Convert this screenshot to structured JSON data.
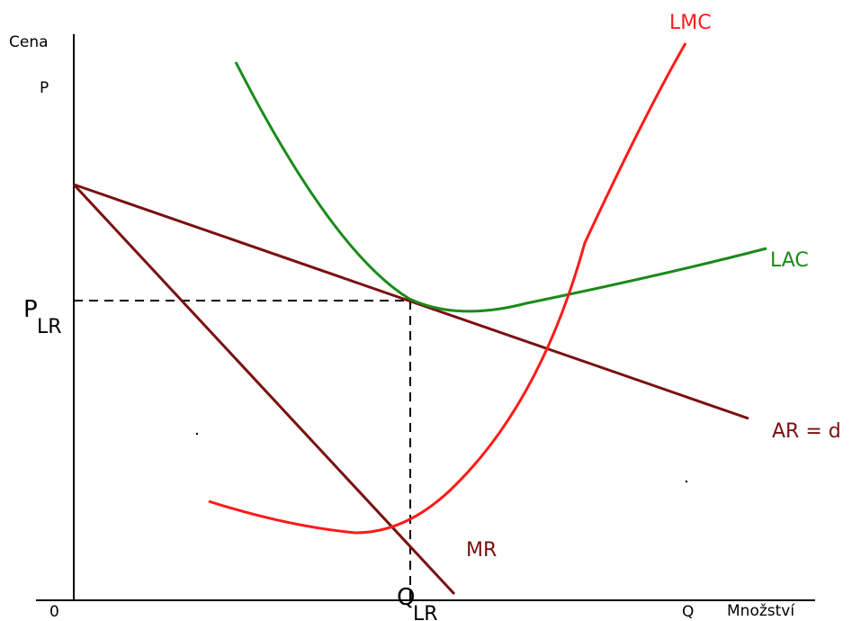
{
  "labels": {
    "y_axis": "Cena",
    "p": "P",
    "origin": "0",
    "q": "Q",
    "x_axis": "Množství",
    "plr_main": "P",
    "plr_sub": "LR",
    "qlr_main": "Q",
    "qlr_sub": "LR"
  },
  "curves": {
    "lmc": "LMC",
    "lac": "LAC",
    "ar": "AR = d",
    "mr": "MR"
  },
  "colors": {
    "lmc": "#ff1a1a",
    "lac": "#1a8a1a",
    "demand": "#7a1010",
    "axis": "#000000"
  }
}
